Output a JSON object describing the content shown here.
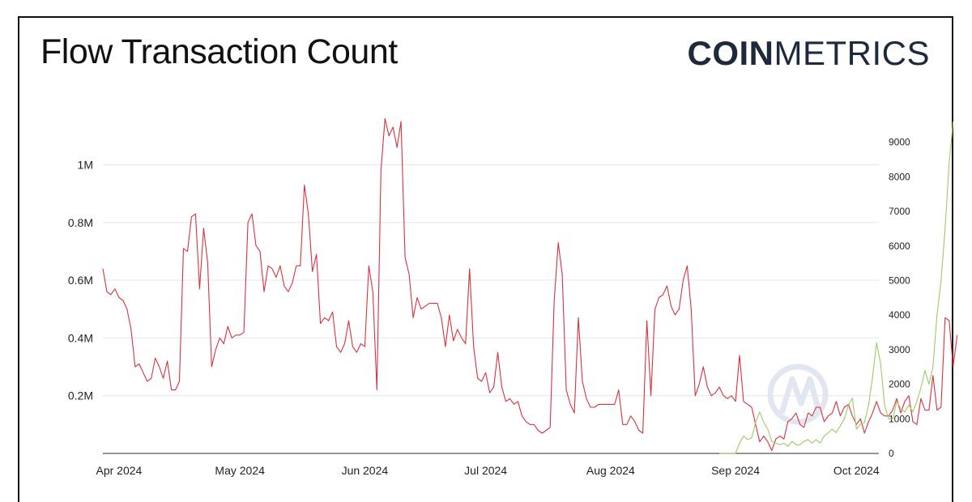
{
  "header": {
    "title": "Flow Transaction Count",
    "logo_bold": "COIN",
    "logo_light": "METRICS"
  },
  "chart_data": {
    "type": "line",
    "title": "Flow Transaction Count",
    "x_ticks": [
      "Apr 2024",
      "May 2024",
      "Jun 2024",
      "Jul 2024",
      "Aug 2024",
      "Sep 2024",
      "Oct 2024"
    ],
    "y_left": {
      "ticks": [
        "0.2M",
        "0.4M",
        "0.6M",
        "0.8M",
        "1M"
      ],
      "tick_values": [
        200000,
        400000,
        600000,
        800000,
        1000000
      ],
      "ylim": [
        0,
        1150000
      ]
    },
    "y_right": {
      "ticks": [
        "0",
        "1000",
        "2000",
        "3000",
        "4000",
        "5000",
        "6000",
        "7000",
        "8000",
        "9000"
      ],
      "tick_values": [
        0,
        1000,
        2000,
        3000,
        4000,
        5000,
        6000,
        7000,
        8000,
        9000
      ],
      "ylim": [
        0,
        9600
      ]
    },
    "grid": true,
    "series": [
      {
        "axis": "left",
        "color": "#d6323c",
        "start": "2024-03-28",
        "values": [
          640000,
          560000,
          550000,
          570000,
          540000,
          530000,
          500000,
          430000,
          300000,
          310000,
          280000,
          250000,
          260000,
          330000,
          300000,
          260000,
          320000,
          220000,
          220000,
          250000,
          710000,
          700000,
          820000,
          830000,
          570000,
          780000,
          660000,
          300000,
          360000,
          400000,
          380000,
          440000,
          400000,
          410000,
          410000,
          420000,
          800000,
          830000,
          720000,
          700000,
          560000,
          650000,
          640000,
          610000,
          650000,
          580000,
          560000,
          590000,
          650000,
          650000,
          930000,
          830000,
          630000,
          690000,
          450000,
          470000,
          460000,
          490000,
          370000,
          350000,
          380000,
          460000,
          370000,
          350000,
          380000,
          370000,
          650000,
          560000,
          220000,
          980000,
          1160000,
          1100000,
          1130000,
          1060000,
          1150000,
          680000,
          620000,
          470000,
          540000,
          500000,
          510000,
          520000,
          520000,
          520000,
          470000,
          370000,
          480000,
          390000,
          430000,
          400000,
          380000,
          640000,
          370000,
          260000,
          250000,
          280000,
          210000,
          230000,
          350000,
          230000,
          180000,
          190000,
          170000,
          180000,
          130000,
          110000,
          100000,
          100000,
          80000,
          70000,
          80000,
          90000,
          530000,
          730000,
          620000,
          220000,
          170000,
          140000,
          470000,
          250000,
          190000,
          160000,
          160000,
          170000,
          170000,
          170000,
          170000,
          170000,
          220000,
          100000,
          100000,
          130000,
          110000,
          80000,
          70000,
          460000,
          200000,
          500000,
          540000,
          550000,
          580000,
          510000,
          480000,
          500000,
          600000,
          650000,
          500000,
          200000,
          240000,
          300000,
          230000,
          200000,
          210000,
          230000,
          200000,
          190000,
          200000,
          180000,
          340000,
          180000,
          170000,
          160000,
          100000,
          40000,
          60000,
          40000,
          10000,
          50000,
          60000,
          50000,
          110000,
          120000,
          140000,
          100000,
          90000,
          140000,
          130000,
          160000,
          160000,
          110000,
          130000,
          140000,
          180000,
          130000,
          160000,
          170000,
          130000,
          100000,
          120000,
          70000,
          110000,
          140000,
          180000,
          140000,
          130000,
          130000,
          150000,
          190000,
          140000,
          180000,
          200000,
          110000,
          100000,
          190000,
          150000,
          150000,
          270000,
          150000,
          160000,
          470000,
          460000,
          300000,
          410000
        ]
      },
      {
        "axis": "right",
        "color": "#9ccc65",
        "start": "2024-08-28",
        "values": [
          0,
          0,
          0,
          0,
          0,
          300,
          500,
          400,
          450,
          900,
          1200,
          900,
          700,
          350,
          300,
          250,
          300,
          200,
          350,
          250,
          250,
          350,
          400,
          300,
          400,
          300,
          500,
          600,
          700,
          600,
          800,
          1000,
          1400,
          1600,
          700,
          850,
          900,
          1400,
          2200,
          3200,
          2600,
          1400,
          1000,
          1000,
          1500,
          1300,
          1200,
          1400,
          1200,
          1500,
          1900,
          2400,
          2000,
          2500,
          4000,
          5000,
          6500,
          8400,
          9600
        ]
      }
    ]
  }
}
